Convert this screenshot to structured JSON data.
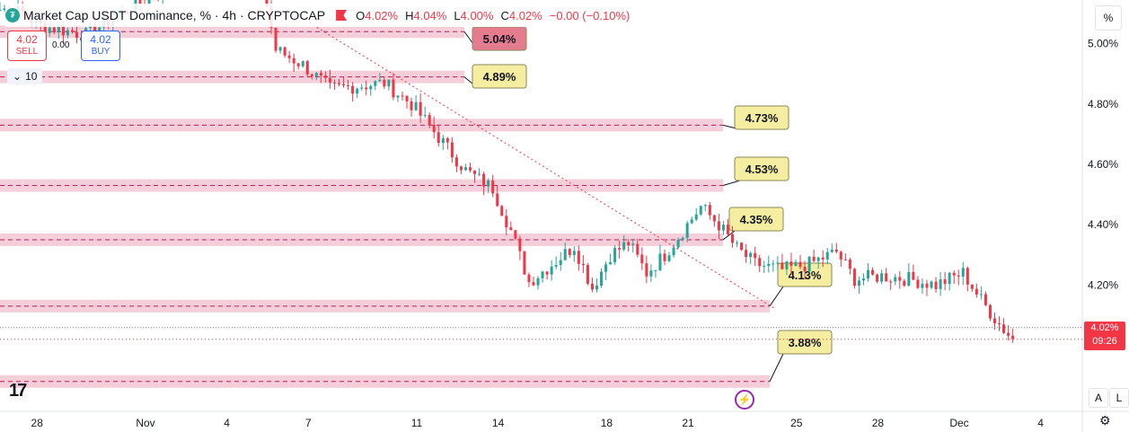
{
  "header": {
    "title": "Market Cap USDT Dominance, % · 4h · CRYPTOCAP",
    "ohlc": [
      {
        "k": "O",
        "v": "4.02%"
      },
      {
        "k": "H",
        "v": "4.04%"
      },
      {
        "k": "L",
        "v": "4.00%"
      },
      {
        "k": "C",
        "v": "4.02%"
      },
      {
        "k": "",
        "v": "−0.00 (−0.10%)"
      }
    ]
  },
  "trade": {
    "sell_price": "4.02",
    "sell_label": "SELL",
    "buy_price": "4.02",
    "buy_label": "BUY",
    "spread": "0.00"
  },
  "volume_toggle": {
    "icon": "chevron-down-icon",
    "value": "10"
  },
  "scale_button": "%",
  "last_price": {
    "value": "4.02%",
    "countdown": "09:26",
    "color": "#f23645"
  },
  "axis_buttons": {
    "auto": "A",
    "log": "L"
  },
  "chart_data": {
    "type": "candlestick",
    "ylim": [
      3.79,
      5.145
    ],
    "y_ticks": [
      "5.00%",
      "4.80%",
      "4.60%",
      "4.40%",
      "4.20%"
    ],
    "y_tick_values": [
      5.0,
      4.8,
      4.6,
      4.4,
      4.2
    ],
    "x_ticks": [
      {
        "label": "28",
        "day": -4
      },
      {
        "label": "Nov",
        "day": 0
      },
      {
        "label": "4",
        "day": 3
      },
      {
        "label": "7",
        "day": 6
      },
      {
        "label": "11",
        "day": 10
      },
      {
        "label": "14",
        "day": 13
      },
      {
        "label": "18",
        "day": 17
      },
      {
        "label": "21",
        "day": 20
      },
      {
        "label": "25",
        "day": 24
      },
      {
        "label": "28",
        "day": 27
      },
      {
        "label": "Dec",
        "day": 30
      },
      {
        "label": "4",
        "day": 33
      }
    ],
    "candles_start_day": -5.8,
    "candle_step_days": 0.1667,
    "close_anchors": [
      [
        0,
        5.14
      ],
      [
        8,
        5.1
      ],
      [
        12,
        5.06
      ],
      [
        22,
        5.03
      ],
      [
        32,
        5.12
      ],
      [
        42,
        5.2
      ],
      [
        50,
        5.24
      ],
      [
        61,
        5.2
      ],
      [
        64,
        4.98
      ],
      [
        70,
        4.93
      ],
      [
        76,
        4.85
      ],
      [
        82,
        4.86
      ],
      [
        88,
        4.87
      ],
      [
        94,
        4.8
      ],
      [
        100,
        4.69
      ],
      [
        106,
        4.58
      ],
      [
        112,
        4.52
      ],
      [
        116,
        4.38
      ],
      [
        120,
        4.21
      ],
      [
        126,
        4.28
      ],
      [
        130,
        4.33
      ],
      [
        134,
        4.19
      ],
      [
        138,
        4.3
      ],
      [
        142,
        4.34
      ],
      [
        146,
        4.24
      ],
      [
        150,
        4.3
      ],
      [
        154,
        4.38
      ],
      [
        158,
        4.46
      ],
      [
        162,
        4.4
      ],
      [
        166,
        4.32
      ],
      [
        170,
        4.27
      ],
      [
        176,
        4.25
      ],
      [
        182,
        4.27
      ],
      [
        188,
        4.31
      ],
      [
        192,
        4.22
      ],
      [
        198,
        4.23
      ],
      [
        204,
        4.22
      ],
      [
        210,
        4.2
      ],
      [
        216,
        4.24
      ],
      [
        220,
        4.15
      ],
      [
        224,
        4.07
      ],
      [
        227,
        4.02
      ]
    ],
    "levels": [
      {
        "value": 5.04,
        "label": "5.04%",
        "bubble_color": "#e57b8e"
      },
      {
        "value": 4.89,
        "label": "4.89%",
        "bubble_color": "#f5eda0"
      },
      {
        "value": 4.73,
        "label": "4.73%",
        "bubble_color": "#f5eda0"
      },
      {
        "value": 4.53,
        "label": "4.53%",
        "bubble_color": "#f5eda0"
      },
      {
        "value": 4.35,
        "label": "4.35%",
        "bubble_color": "#f5eda0"
      },
      {
        "value": 4.13,
        "label": "4.13%",
        "bubble_color": "#f5eda0"
      },
      {
        "value": 3.88,
        "label": "3.88%",
        "bubble_color": "#f5eda0"
      }
    ],
    "trendline": {
      "from": {
        "day": 6.1,
        "value": 5.07
      },
      "to": {
        "day": 23.3,
        "value": 4.12
      }
    },
    "colors": {
      "up": "#26a69a",
      "down": "#f23645",
      "zone": "#f2c6d2",
      "zone_line": "#c2185b",
      "trend": "#f23645"
    }
  }
}
